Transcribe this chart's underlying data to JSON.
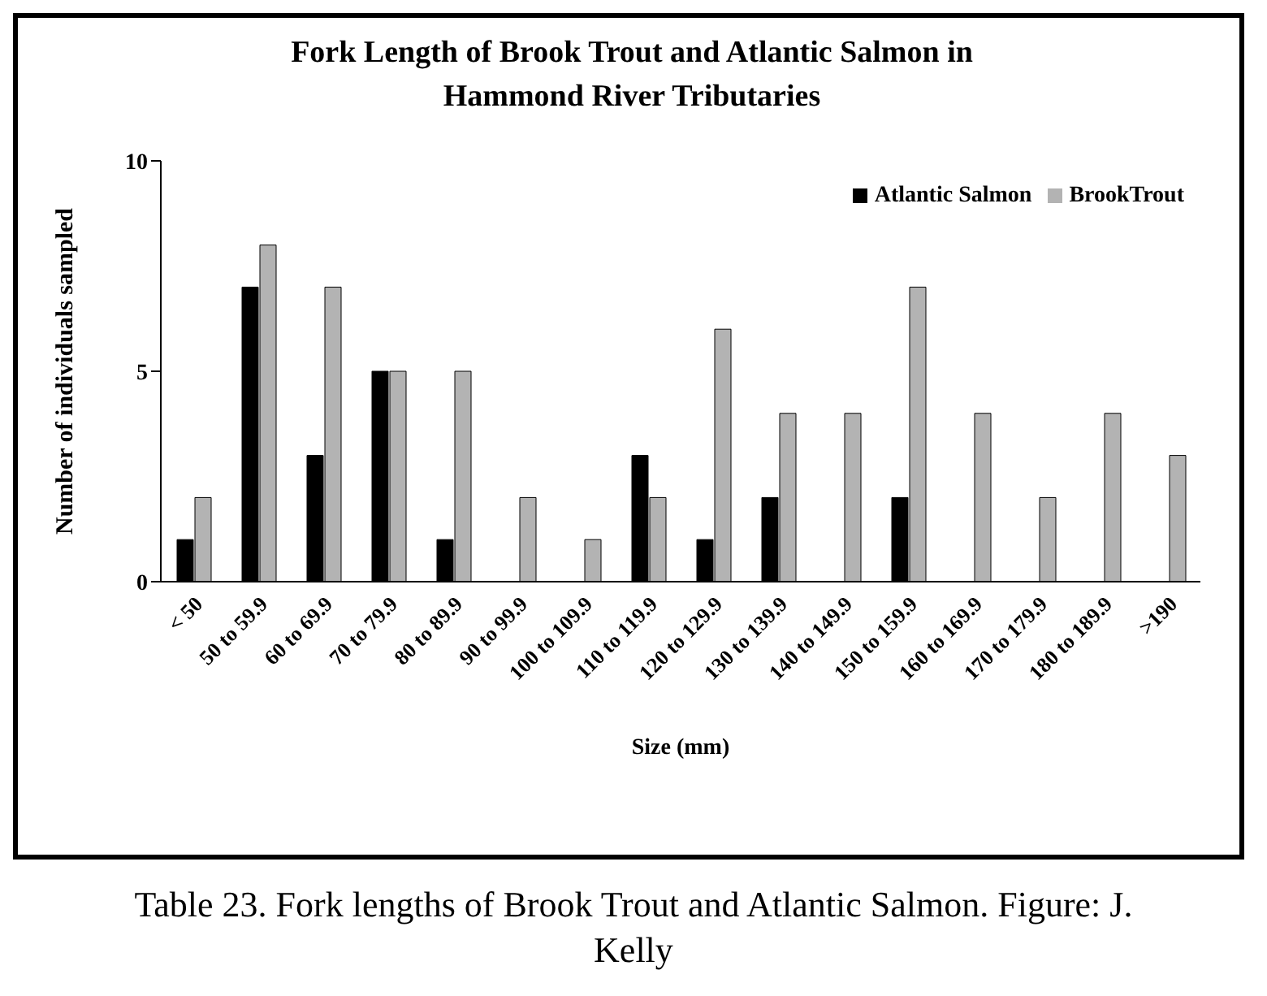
{
  "chart_data": {
    "type": "bar",
    "title": "Fork Length of Brook Trout and Atlantic Salmon in Hammond River Tributaries",
    "xlabel": "Size (mm)",
    "ylabel": "Number of individuals sampled",
    "categories": [
      "< 50",
      "50 to 59.9",
      "60 to 69.9",
      "70 to 79.9",
      "80 to 89.9",
      "90 to 99.9",
      "100 to 109.9",
      "110 to 119.9",
      "120 to 129.9",
      "130 to 139.9",
      "140 to 149.9",
      "150 to 159.9",
      "160 to 169.9",
      "170 to 179.9",
      "180 to 189.9",
      ">190"
    ],
    "series": [
      {
        "name": "Atlantic Salmon",
        "color": "#000000",
        "values": [
          1,
          7,
          3,
          5,
          1,
          0,
          0,
          3,
          1,
          2,
          0,
          2,
          0,
          0,
          0,
          0
        ]
      },
      {
        "name": "BrookTrout",
        "color": "#b3b3b3",
        "values": [
          2,
          8,
          7,
          5,
          5,
          2,
          1,
          2,
          6,
          4,
          4,
          7,
          4,
          2,
          4,
          3
        ]
      }
    ],
    "ylim": [
      0,
      10
    ],
    "yticks": [
      0,
      5,
      10
    ],
    "grid": false,
    "legend": "top right",
    "annotations": [
      "Table 23. Fork lengths of Brook Trout and Atlantic Salmon. Figure: J. Kelly"
    ]
  }
}
